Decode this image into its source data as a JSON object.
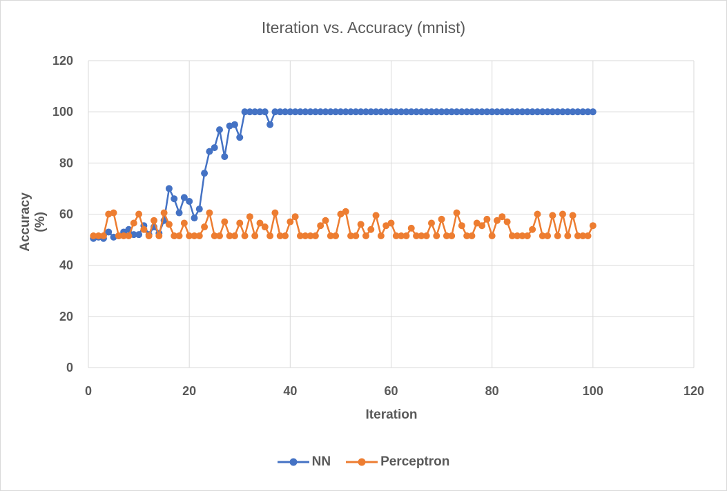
{
  "chart_data": {
    "type": "line",
    "title": "Iteration vs. Accuracy (mnist)",
    "xlabel": "Iteration",
    "ylabel": "Accuracy (%)",
    "xlim": [
      0,
      120
    ],
    "ylim": [
      0,
      120
    ],
    "xticks": [
      0,
      20,
      40,
      60,
      80,
      100,
      120
    ],
    "yticks": [
      0,
      20,
      40,
      60,
      80,
      100,
      120
    ],
    "grid": true,
    "legend_position": "bottom",
    "x": [
      1,
      2,
      3,
      4,
      5,
      6,
      7,
      8,
      9,
      10,
      11,
      12,
      13,
      14,
      15,
      16,
      17,
      18,
      19,
      20,
      21,
      22,
      23,
      24,
      25,
      26,
      27,
      28,
      29,
      30,
      31,
      32,
      33,
      34,
      35,
      36,
      37,
      38,
      39,
      40,
      41,
      42,
      43,
      44,
      45,
      46,
      47,
      48,
      49,
      50,
      51,
      52,
      53,
      54,
      55,
      56,
      57,
      58,
      59,
      60,
      61,
      62,
      63,
      64,
      65,
      66,
      67,
      68,
      69,
      70,
      71,
      72,
      73,
      74,
      75,
      76,
      77,
      78,
      79,
      80,
      81,
      82,
      83,
      84,
      85,
      86,
      87,
      88,
      89,
      90,
      91,
      92,
      93,
      94,
      95,
      96,
      97,
      98,
      99,
      100
    ],
    "series": [
      {
        "name": "NN",
        "color": "#4472C4",
        "values": [
          50.5,
          51,
          50.5,
          53,
          51,
          51.5,
          53,
          54,
          52,
          52,
          55.5,
          52,
          55,
          52.5,
          57.5,
          70,
          66,
          60.5,
          66.5,
          65,
          58.5,
          62,
          76,
          84.5,
          86,
          93,
          82.5,
          94.5,
          95,
          90,
          100,
          100,
          100,
          100,
          100,
          95,
          100,
          100,
          100,
          100,
          100,
          100,
          100,
          100,
          100,
          100,
          100,
          100,
          100,
          100,
          100,
          100,
          100,
          100,
          100,
          100,
          100,
          100,
          100,
          100,
          100,
          100,
          100,
          100,
          100,
          100,
          100,
          100,
          100,
          100,
          100,
          100,
          100,
          100,
          100,
          100,
          100,
          100,
          100,
          100,
          100,
          100,
          100,
          100,
          100,
          100,
          100,
          100,
          100,
          100,
          100,
          100,
          100,
          100,
          100,
          100,
          100,
          100,
          100,
          100
        ]
      },
      {
        "name": "Perceptron",
        "color": "#ED7D31",
        "values": [
          51.5,
          51.5,
          51.5,
          60,
          60.5,
          51.5,
          51.5,
          51.5,
          56.5,
          60,
          54,
          51.5,
          57.5,
          51.5,
          60.5,
          56,
          51.5,
          51.5,
          56.5,
          51.5,
          51.5,
          51.5,
          55,
          60.5,
          51.5,
          51.5,
          57,
          51.5,
          51.5,
          56.5,
          51.5,
          59,
          51.5,
          56.5,
          55,
          51.5,
          60.5,
          51.5,
          51.5,
          57,
          59,
          51.5,
          51.5,
          51.5,
          51.5,
          55.5,
          57.5,
          51.5,
          51.5,
          60,
          61,
          51.5,
          51.5,
          56,
          51.5,
          54,
          59.5,
          51.5,
          55.5,
          56.5,
          51.5,
          51.5,
          51.5,
          54.5,
          51.5,
          51.5,
          51.5,
          56.5,
          51.5,
          58,
          51.5,
          51.5,
          60.5,
          55.5,
          51.5,
          51.5,
          56.5,
          55.5,
          58,
          51.5,
          57.5,
          59,
          57,
          51.5,
          51.5,
          51.5,
          51.5,
          54,
          60,
          51.5,
          51.5,
          59.5,
          51.5,
          60,
          51.5,
          59.5,
          51.5,
          51.5,
          51.5,
          55.5
        ]
      }
    ]
  }
}
